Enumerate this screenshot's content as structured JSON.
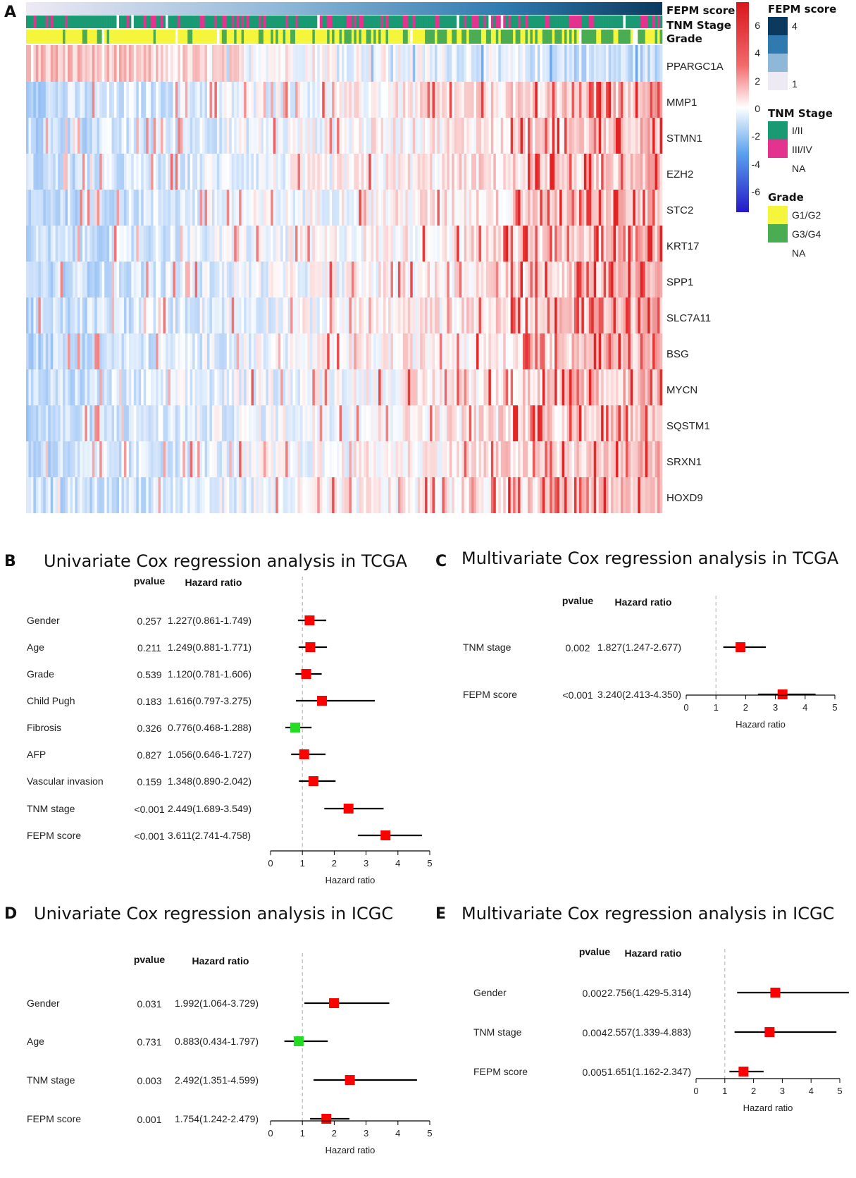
{
  "panel_labels": {
    "a": "A",
    "b": "B",
    "c": "C",
    "d": "D",
    "e": "E"
  },
  "chart_data": [
    {
      "type": "heatmap",
      "panel": "A",
      "genes": [
        "PPARGC1A",
        "MMP1",
        "STMN1",
        "EZH2",
        "STC2",
        "KRT17",
        "SPP1",
        "SLC7A11",
        "BSG",
        "MYCN",
        "SQSTM1",
        "SRXN1",
        "HOXD9"
      ],
      "trend": [
        "down",
        "up",
        "up",
        "up",
        "up",
        "up",
        "up",
        "up",
        "up",
        "up",
        "up",
        "up",
        "up"
      ],
      "annotations": [
        "FEPM score",
        "TNM Stage",
        "Grade"
      ],
      "colorbar": {
        "ticks": [
          "6",
          "4",
          "2",
          "0",
          "-2",
          "-4",
          "-6"
        ],
        "low": "#2b1fd0",
        "mid": "#ffffff",
        "high": "#e31a1c"
      },
      "legends": {
        "fepm": {
          "title": "FEPM score",
          "high_label": "4",
          "low_label": "1"
        },
        "tnm": {
          "title": "TNM Stage",
          "items": [
            {
              "label": "I/II",
              "color": "#1a9a73"
            },
            {
              "label": "III/IV",
              "color": "#e4338f"
            },
            {
              "label": "NA",
              "color": "#ffffff"
            }
          ]
        },
        "grade": {
          "title": "Grade",
          "items": [
            {
              "label": "G1/G2",
              "color": "#f5f53c"
            },
            {
              "label": "G3/G4",
              "color": "#4aad52"
            },
            {
              "label": "NA",
              "color": "#ffffff"
            }
          ]
        }
      }
    },
    {
      "type": "forest",
      "panel": "B",
      "title": "Univariate Cox regression analysis in TCGA",
      "col_pvalue": "pvalue",
      "col_hr": "Hazard ratio",
      "xlabel": "Hazard ratio",
      "xticks": [
        "0",
        "1",
        "2",
        "3",
        "4",
        "5"
      ],
      "xlim": [
        0,
        5
      ],
      "rows": [
        {
          "label": "Gender",
          "pvalue": "0.257",
          "hr_text": "1.227(0.861-1.749)",
          "hr": 1.227,
          "lo": 0.861,
          "hi": 1.749
        },
        {
          "label": "Age",
          "pvalue": "0.211",
          "hr_text": "1.249(0.881-1.771)",
          "hr": 1.249,
          "lo": 0.881,
          "hi": 1.771
        },
        {
          "label": "Grade",
          "pvalue": "0.539",
          "hr_text": "1.120(0.781-1.606)",
          "hr": 1.12,
          "lo": 0.781,
          "hi": 1.606
        },
        {
          "label": "Child Pugh",
          "pvalue": "0.183",
          "hr_text": "1.616(0.797-3.275)",
          "hr": 1.616,
          "lo": 0.797,
          "hi": 3.275
        },
        {
          "label": "Fibrosis",
          "pvalue": "0.326",
          "hr_text": "0.776(0.468-1.288)",
          "hr": 0.776,
          "lo": 0.468,
          "hi": 1.288
        },
        {
          "label": "AFP",
          "pvalue": "0.827",
          "hr_text": "1.056(0.646-1.727)",
          "hr": 1.056,
          "lo": 0.646,
          "hi": 1.727
        },
        {
          "label": "Vascular invasion",
          "pvalue": "0.159",
          "hr_text": "1.348(0.890-2.042)",
          "hr": 1.348,
          "lo": 0.89,
          "hi": 2.042
        },
        {
          "label": "TNM stage",
          "pvalue": "<0.001",
          "hr_text": "2.449(1.689-3.549)",
          "hr": 2.449,
          "lo": 1.689,
          "hi": 3.549
        },
        {
          "label": "FEPM score",
          "pvalue": "<0.001",
          "hr_text": "3.611(2.741-4.758)",
          "hr": 3.611,
          "lo": 2.741,
          "hi": 4.758
        }
      ]
    },
    {
      "type": "forest",
      "panel": "C",
      "title": "Multivariate Cox regression analysis in TCGA",
      "col_pvalue": "pvalue",
      "col_hr": "Hazard ratio",
      "xlabel": "Hazard ratio",
      "xticks": [
        "0",
        "1",
        "2",
        "3",
        "4",
        "5"
      ],
      "xlim": [
        0,
        5
      ],
      "rows": [
        {
          "label": "TNM stage",
          "pvalue": "0.002",
          "hr_text": "1.827(1.247-2.677)",
          "hr": 1.827,
          "lo": 1.247,
          "hi": 2.677
        },
        {
          "label": "FEPM score",
          "pvalue": "<0.001",
          "hr_text": "3.240(2.413-4.350)",
          "hr": 3.24,
          "lo": 2.413,
          "hi": 4.35
        }
      ]
    },
    {
      "type": "forest",
      "panel": "D",
      "title": "Univariate Cox regression analysis in ICGC",
      "col_pvalue": "pvalue",
      "col_hr": "Hazard ratio",
      "xlabel": "Hazard ratio",
      "xticks": [
        "0",
        "1",
        "2",
        "3",
        "4",
        "5"
      ],
      "xlim": [
        0,
        5
      ],
      "rows": [
        {
          "label": "Gender",
          "pvalue": "0.031",
          "hr_text": "1.992(1.064-3.729)",
          "hr": 1.992,
          "lo": 1.064,
          "hi": 3.729
        },
        {
          "label": "Age",
          "pvalue": "0.731",
          "hr_text": "0.883(0.434-1.797)",
          "hr": 0.883,
          "lo": 0.434,
          "hi": 1.797
        },
        {
          "label": "TNM stage",
          "pvalue": "0.003",
          "hr_text": "2.492(1.351-4.599)",
          "hr": 2.492,
          "lo": 1.351,
          "hi": 4.599
        },
        {
          "label": "FEPM score",
          "pvalue": "0.001",
          "hr_text": "1.754(1.242-2.479)",
          "hr": 1.754,
          "lo": 1.242,
          "hi": 2.479
        }
      ]
    },
    {
      "type": "forest",
      "panel": "E",
      "title": "Multivariate Cox regression analysis in ICGC",
      "col_pvalue": "pvalue",
      "col_hr": "Hazard ratio",
      "xlabel": "Hazard ratio",
      "xticks": [
        "0",
        "1",
        "2",
        "3",
        "4",
        "5"
      ],
      "xlim": [
        0,
        5
      ],
      "rows": [
        {
          "label": "Gender",
          "pvalue": "0.002",
          "hr_text": "2.756(1.429-5.314)",
          "hr": 2.756,
          "lo": 1.429,
          "hi": 5.314
        },
        {
          "label": "TNM stage",
          "pvalue": "0.004",
          "hr_text": "2.557(1.339-4.883)",
          "hr": 2.557,
          "lo": 1.339,
          "hi": 4.883
        },
        {
          "label": "FEPM score",
          "pvalue": "0.005",
          "hr_text": "1.651(1.162-2.347)",
          "hr": 1.651,
          "lo": 1.162,
          "hi": 2.347
        }
      ]
    }
  ],
  "colors": {
    "risk": "#ff0000",
    "protective": "#22dd22",
    "line": "#000000",
    "refline": "#bbbbbb"
  }
}
